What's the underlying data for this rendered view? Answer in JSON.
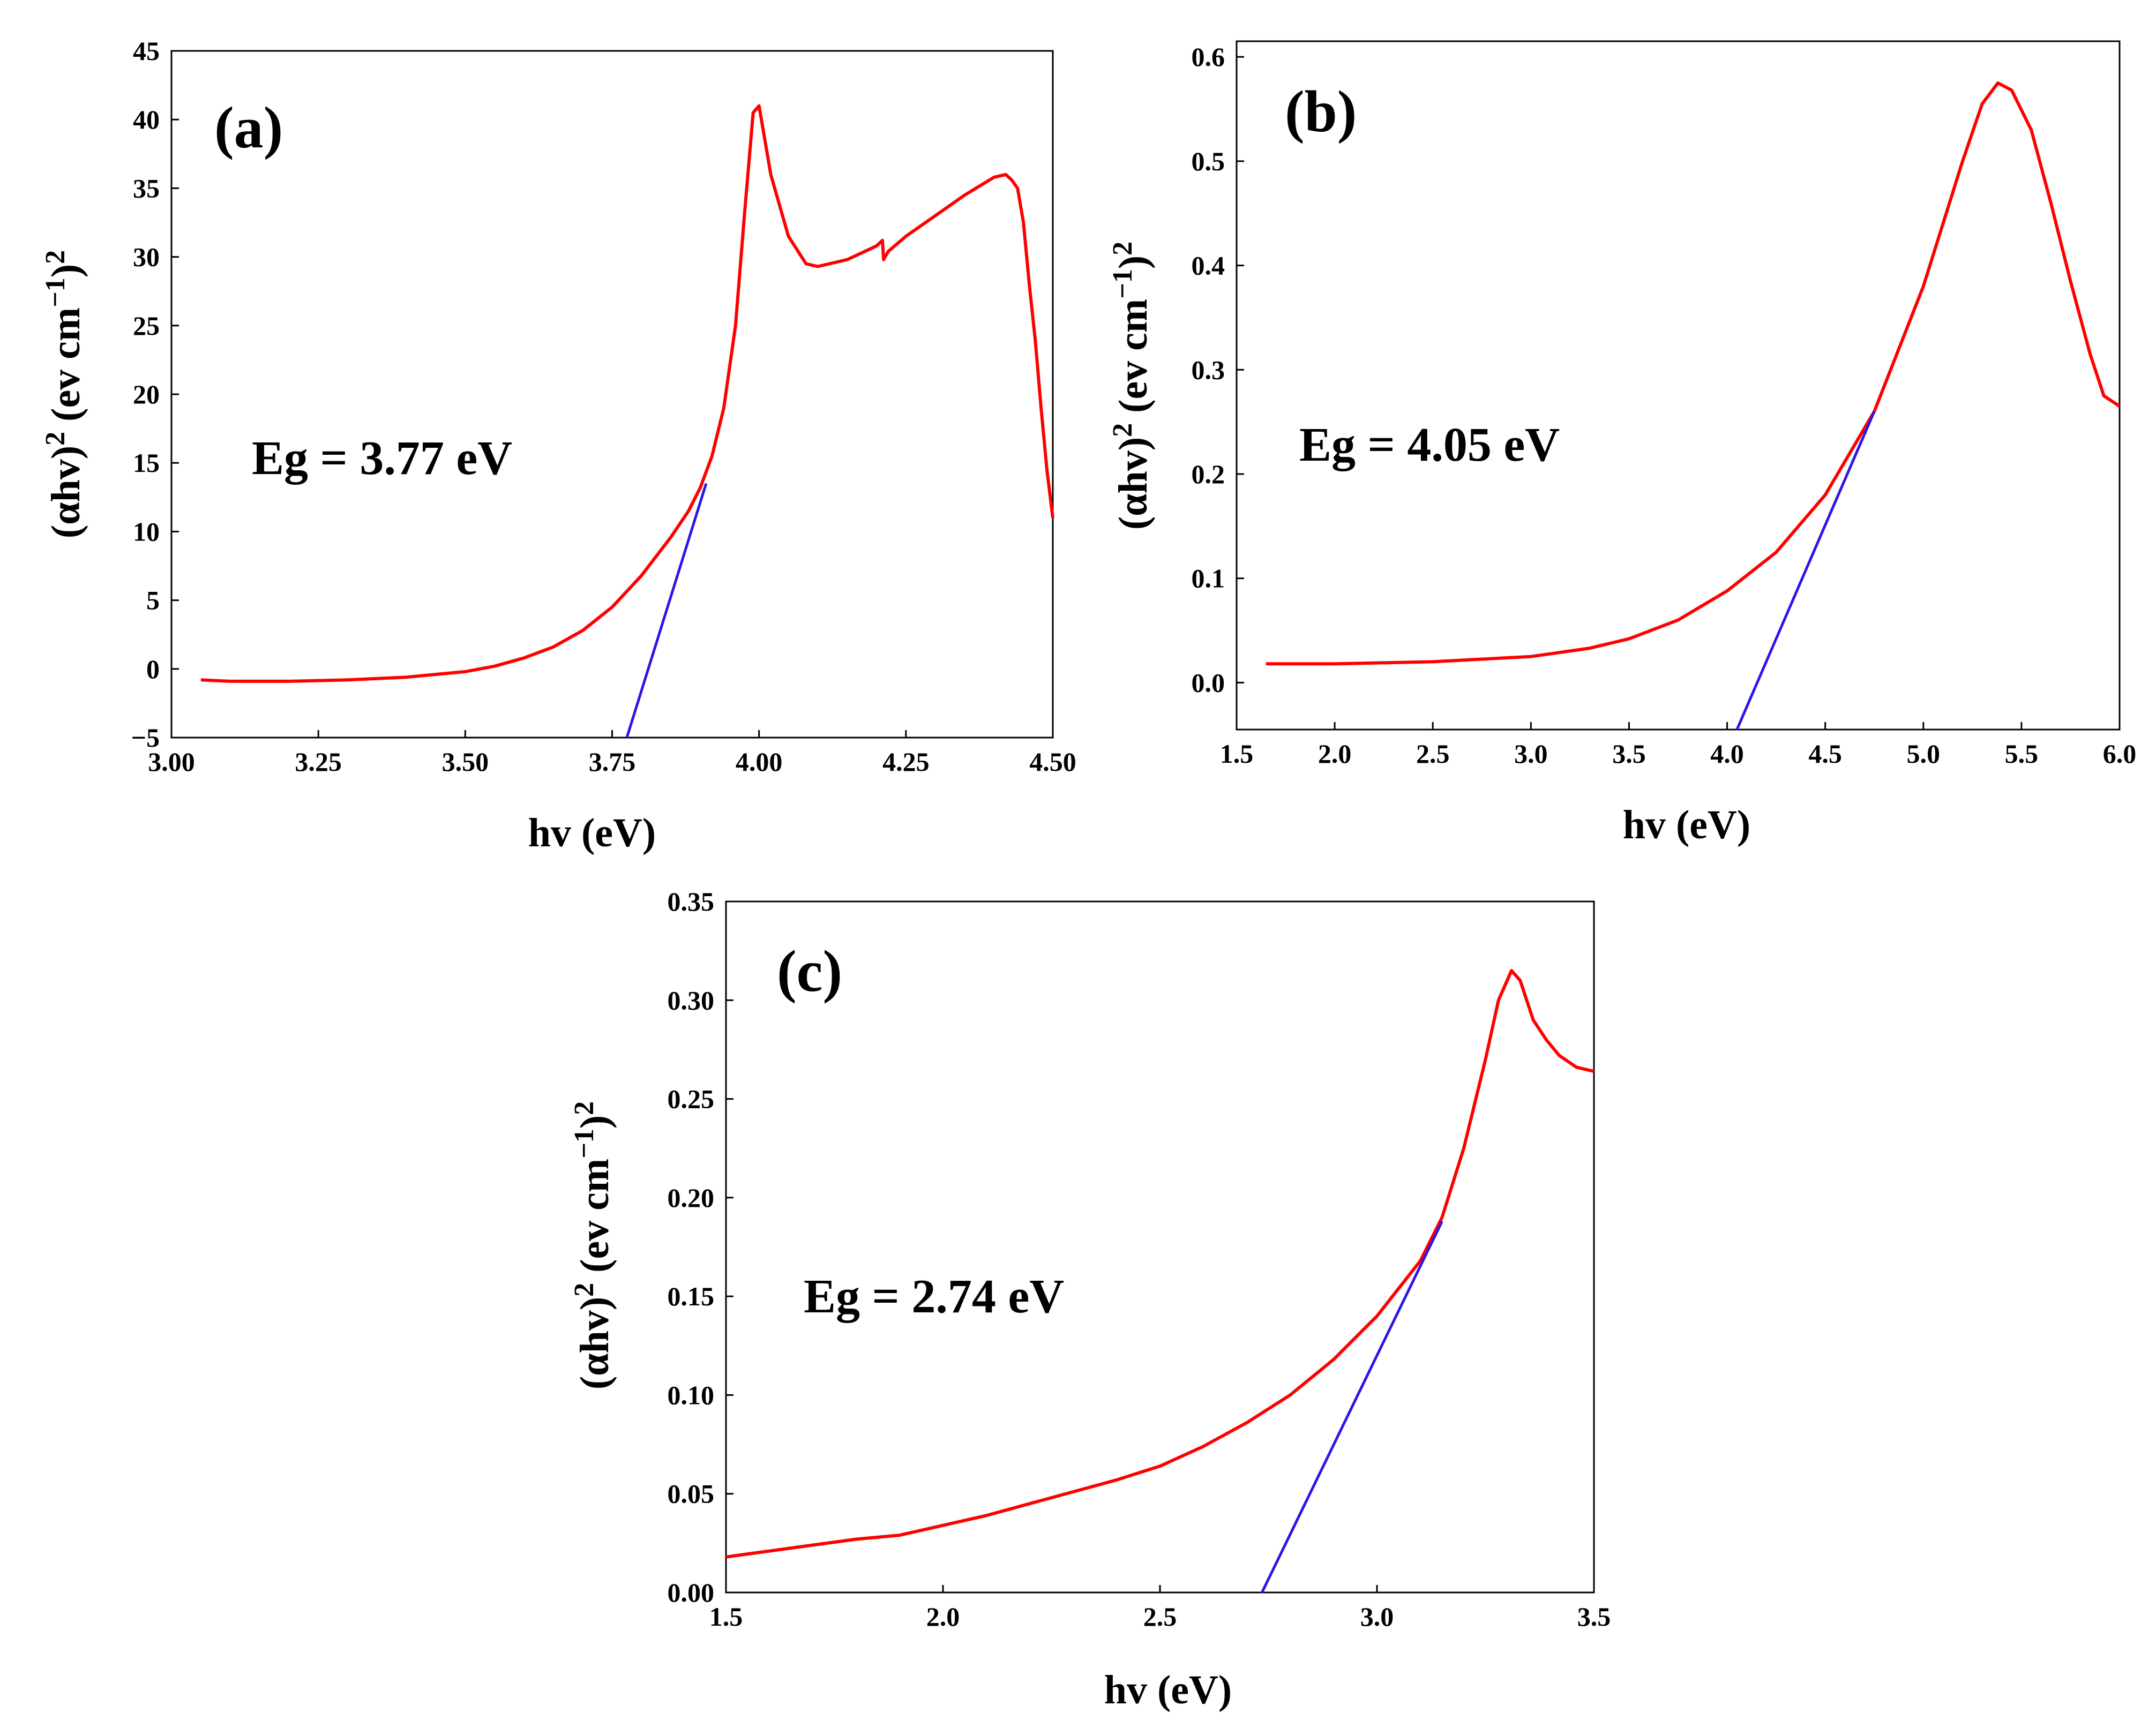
{
  "chart_data": [
    {
      "type": "line",
      "panel_label": "(a)",
      "annotation": "Eg = 3.77 eV",
      "xlabel": "hv (eV)",
      "ylabel": "(αhv)2 (ev cm−1)2",
      "xlim": [
        3.0,
        4.5
      ],
      "ylim": [
        -5,
        45
      ],
      "xticks": [
        "3.00",
        "3.25",
        "3.50",
        "3.75",
        "4.00",
        "4.25",
        "4.50"
      ],
      "yticks": [
        "-5",
        "0",
        "5",
        "10",
        "15",
        "20",
        "25",
        "30",
        "35",
        "40",
        "45"
      ],
      "series": [
        {
          "name": "spectrum",
          "color": "#ff0000",
          "x": [
            3.05,
            3.1,
            3.2,
            3.3,
            3.4,
            3.5,
            3.55,
            3.6,
            3.65,
            3.7,
            3.75,
            3.8,
            3.85,
            3.88,
            3.9,
            3.92,
            3.94,
            3.96,
            3.975,
            3.99,
            4.0,
            4.02,
            4.05,
            4.08,
            4.1,
            4.15,
            4.2,
            4.21,
            4.212,
            4.22,
            4.25,
            4.3,
            4.35,
            4.4,
            4.42,
            4.43,
            4.44,
            4.45,
            4.46,
            4.47,
            4.48,
            4.49,
            4.5
          ],
          "values": [
            -0.8,
            -0.9,
            -0.9,
            -0.8,
            -0.6,
            -0.2,
            0.2,
            0.8,
            1.6,
            2.8,
            4.5,
            6.8,
            9.6,
            11.5,
            13.2,
            15.5,
            19.0,
            25.0,
            33.0,
            40.5,
            41.0,
            36.0,
            31.5,
            29.5,
            29.3,
            29.8,
            30.8,
            31.2,
            29.8,
            30.4,
            31.5,
            33.0,
            34.5,
            35.8,
            36.0,
            35.6,
            35.0,
            32.5,
            28.0,
            24.0,
            19.0,
            14.5,
            11.0
          ]
        }
      ],
      "fit_line": {
        "x": [
          3.775,
          3.91
        ],
        "values": [
          -5,
          13.5
        ]
      }
    },
    {
      "type": "line",
      "panel_label": "(b)",
      "annotation": "Eg = 4.05  eV",
      "xlabel": "hv (eV)",
      "ylabel": "(αhv)2 (ev cm−1)2",
      "xlim": [
        1.5,
        6.0
      ],
      "ylim": [
        -0.045,
        0.615
      ],
      "xticks": [
        "1.5",
        "2.0",
        "2.5",
        "3.0",
        "3.5",
        "4.0",
        "4.5",
        "5.0",
        "5.5",
        "6.0"
      ],
      "yticks": [
        "0.0",
        "0.1",
        "0.2",
        "0.3",
        "0.4",
        "0.5",
        "0.6"
      ],
      "series": [
        {
          "name": "spectrum",
          "color": "#ff0000",
          "x": [
            1.65,
            2.0,
            2.5,
            3.0,
            3.3,
            3.5,
            3.75,
            4.0,
            4.25,
            4.5,
            4.75,
            5.0,
            5.2,
            5.3,
            5.38,
            5.45,
            5.55,
            5.65,
            5.75,
            5.85,
            5.92,
            6.0
          ],
          "values": [
            0.018,
            0.018,
            0.02,
            0.025,
            0.033,
            0.042,
            0.06,
            0.088,
            0.125,
            0.18,
            0.26,
            0.38,
            0.5,
            0.555,
            0.575,
            0.568,
            0.53,
            0.46,
            0.385,
            0.315,
            0.275,
            0.265
          ]
        }
      ],
      "fit_line": {
        "x": [
          4.05,
          4.75
        ],
        "values": [
          -0.045,
          0.26
        ]
      }
    },
    {
      "type": "line",
      "panel_label": "(c)",
      "annotation": "Eg = 2.74 eV",
      "xlabel": "hv (eV)",
      "ylabel": "(αhv)2 (ev cm−1)2",
      "xlim": [
        1.5,
        3.5
      ],
      "ylim": [
        0.0,
        0.35
      ],
      "xticks": [
        "1.5",
        "2.0",
        "2.5",
        "3.0",
        "3.5"
      ],
      "yticks": [
        "0.00",
        "0.05",
        "0.10",
        "0.15",
        "0.20",
        "0.25",
        "0.30",
        "0.35"
      ],
      "series": [
        {
          "name": "spectrum",
          "color": "#ff0000",
          "x": [
            1.5,
            1.6,
            1.7,
            1.8,
            1.9,
            2.0,
            2.1,
            2.2,
            2.3,
            2.4,
            2.5,
            2.6,
            2.7,
            2.8,
            2.9,
            3.0,
            3.1,
            3.15,
            3.2,
            3.25,
            3.28,
            3.31,
            3.33,
            3.36,
            3.39,
            3.42,
            3.46,
            3.5
          ],
          "values": [
            0.018,
            0.021,
            0.024,
            0.027,
            0.029,
            0.034,
            0.039,
            0.045,
            0.051,
            0.057,
            0.064,
            0.074,
            0.086,
            0.1,
            0.118,
            0.14,
            0.168,
            0.19,
            0.225,
            0.27,
            0.3,
            0.315,
            0.31,
            0.29,
            0.28,
            0.272,
            0.266,
            0.264
          ]
        }
      ],
      "fit_line": {
        "x": [
          2.735,
          3.15
        ],
        "values": [
          0.0,
          0.188
        ]
      }
    }
  ]
}
